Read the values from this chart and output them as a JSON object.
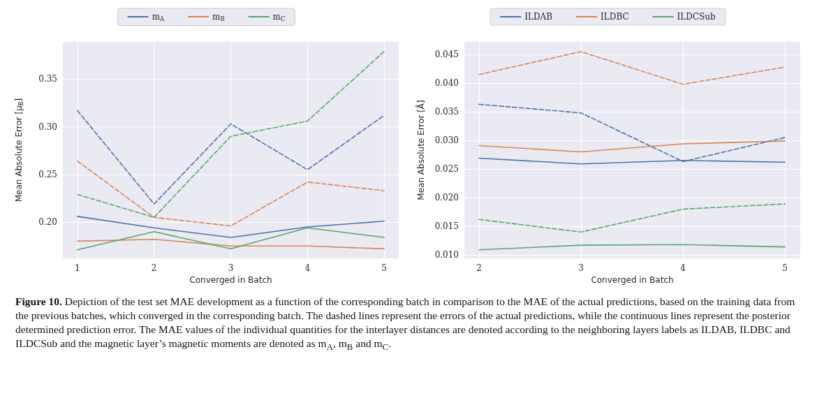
{
  "chart_data": [
    {
      "type": "line",
      "xlabel": "Converged in Batch",
      "ylabel": "Mean Absolute Error [μ$_{B}$]",
      "x": [
        1,
        2,
        3,
        4,
        5
      ],
      "xlim": [
        0.81,
        5.19
      ],
      "xticks": [
        1,
        2,
        3,
        4,
        5
      ],
      "ylim": [
        0.162,
        0.389
      ],
      "yticks": [
        {
          "value": 0.2,
          "label": "0.20"
        },
        {
          "value": 0.25,
          "label": "0.25"
        },
        {
          "value": 0.3,
          "label": "0.30"
        },
        {
          "value": 0.35,
          "label": "0.35"
        }
      ],
      "grid": true,
      "legend": "top",
      "marker": "none",
      "series": [
        {
          "name": "m$_{A}$",
          "color": "#4c72b0",
          "line_style": "solid",
          "values": [
            0.206,
            0.194,
            0.184,
            0.195,
            0.201
          ]
        },
        {
          "name": "m$_{B}$",
          "color": "#dd8452",
          "line_style": "solid",
          "values": [
            0.18,
            0.182,
            0.175,
            0.175,
            0.172
          ]
        },
        {
          "name": "m$_{C}$",
          "color": "#55a868",
          "line_style": "solid",
          "values": [
            0.171,
            0.19,
            0.172,
            0.194,
            0.184
          ]
        },
        {
          "color": "#4c72b0",
          "line_style": "dashed",
          "values": [
            0.317,
            0.219,
            0.303,
            0.255,
            0.312
          ]
        },
        {
          "color": "#dd8452",
          "line_style": "dashed",
          "values": [
            0.264,
            0.205,
            0.196,
            0.242,
            0.233
          ]
        },
        {
          "color": "#55a868",
          "line_style": "dashed",
          "values": [
            0.229,
            0.205,
            0.29,
            0.306,
            0.379
          ]
        }
      ],
      "annotations": [
        "Figure 10.",
        "Depiction of the test set MAE development as a function of the corresponding batch in comparison to the MAE of the actual predictions, based on the training data from the previous batches, which converged in the corresponding batch. The dashed lines represent the errors of the actual predictions, while the continuous lines represent the posterior determined prediction error. The MAE values of the individual quantities for the interlayer distances are denoted according to the neighboring layers labels as ILDAB, ILDBC and ILDCSub and the magnetic layer’s magnetic moments are denoted as m$_{A}$, m$_{B}$ and m$_{C}$."
      ]
    },
    {
      "type": "line",
      "xlabel": "Converged in Batch",
      "ylabel": "Mean Absolute Error [Å]",
      "x": [
        2,
        3,
        4,
        5
      ],
      "xlim": [
        1.856,
        5.15
      ],
      "xticks": [
        2,
        3,
        4,
        5
      ],
      "ylim": [
        0.0094,
        0.0472
      ],
      "yticks": [
        {
          "value": 0.01,
          "label": "0.010"
        },
        {
          "value": 0.015,
          "label": "0.015"
        },
        {
          "value": 0.02,
          "label": "0.020"
        },
        {
          "value": 0.025,
          "label": "0.025"
        },
        {
          "value": 0.03,
          "label": "0.030"
        },
        {
          "value": 0.035,
          "label": "0.035"
        },
        {
          "value": 0.04,
          "label": "0.040"
        },
        {
          "value": 0.045,
          "label": "0.045"
        }
      ],
      "grid": true,
      "legend": "top",
      "marker": "none",
      "series": [
        {
          "name": "ILDAB",
          "color": "#4c72b0",
          "line_style": "solid",
          "values": [
            0.0269,
            0.0259,
            0.0265,
            0.0262
          ]
        },
        {
          "name": "ILDBC",
          "color": "#dd8452",
          "line_style": "solid",
          "values": [
            0.0291,
            0.028,
            0.0294,
            0.0299
          ]
        },
        {
          "name": "ILDCSub",
          "color": "#55a868",
          "line_style": "solid",
          "values": [
            0.0109,
            0.0117,
            0.0118,
            0.0114
          ]
        },
        {
          "color": "#4c72b0",
          "line_style": "dashed",
          "values": [
            0.0363,
            0.0348,
            0.0263,
            0.0305
          ]
        },
        {
          "color": "#dd8452",
          "line_style": "dashed",
          "values": [
            0.0415,
            0.0455,
            0.0398,
            0.0428
          ]
        },
        {
          "color": "#55a868",
          "line_style": "dashed",
          "values": [
            0.0162,
            0.014,
            0.018,
            0.0189
          ]
        }
      ]
    }
  ]
}
